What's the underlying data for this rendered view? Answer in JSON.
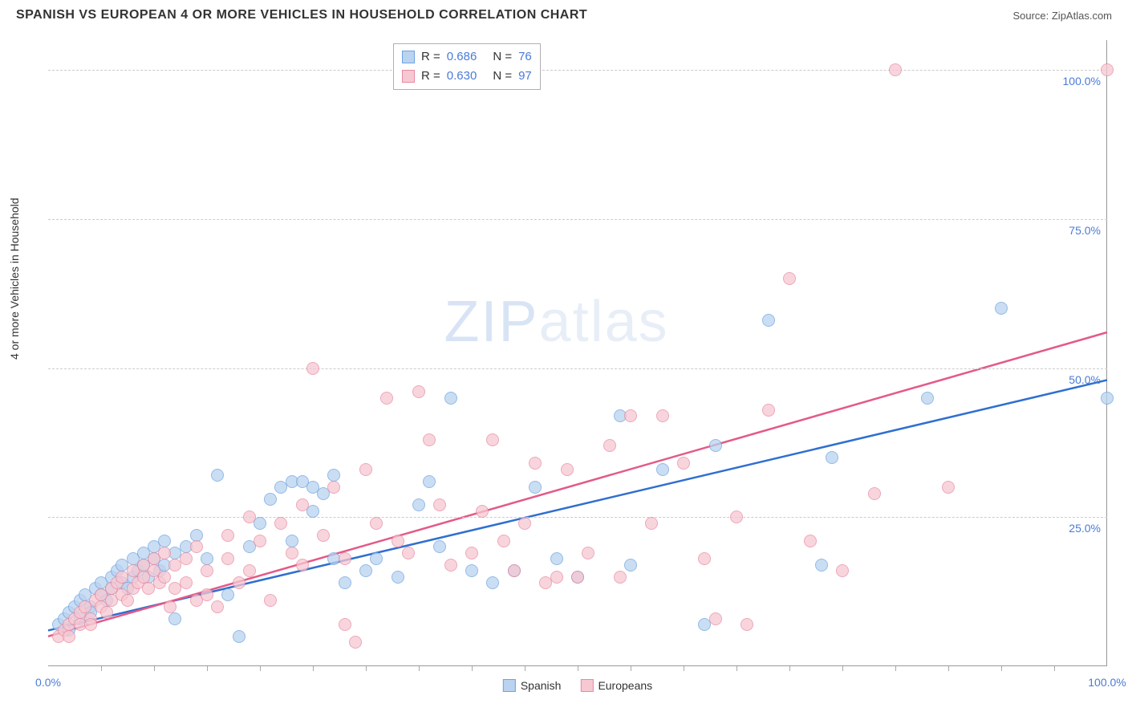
{
  "header": {
    "title": "SPANISH VS EUROPEAN 4 OR MORE VEHICLES IN HOUSEHOLD CORRELATION CHART",
    "source": "Source: ZipAtlas.com"
  },
  "axes": {
    "ylabel": "4 or more Vehicles in Household",
    "xmin": 0,
    "xmax": 100,
    "ymin": 0,
    "ymax": 105,
    "yticks": [
      {
        "v": 25,
        "label": "25.0%"
      },
      {
        "v": 50,
        "label": "50.0%"
      },
      {
        "v": 75,
        "label": "75.0%"
      },
      {
        "v": 100,
        "label": "100.0%"
      }
    ],
    "xtick_major": [
      {
        "v": 0,
        "label": "0.0%"
      },
      {
        "v": 100,
        "label": "100.0%"
      }
    ],
    "xtick_minor": [
      5,
      10,
      15,
      20,
      25,
      30,
      35,
      40,
      45,
      50,
      55,
      60,
      65,
      70,
      75,
      80,
      85,
      90,
      95
    ],
    "grid_color": "#cccccc",
    "label_color": "#4a7bd6"
  },
  "watermark": {
    "bold": "ZIP",
    "light": "atlas"
  },
  "series": [
    {
      "name": "Spanish",
      "fill": "#b9d3f0",
      "stroke": "#6fa3e0",
      "line_color": "#2f6fd0",
      "R": "0.686",
      "N": "76",
      "trend": {
        "x1": 0,
        "y1": 6,
        "x2": 100,
        "y2": 48
      },
      "points": [
        [
          1,
          7
        ],
        [
          1.5,
          8
        ],
        [
          2,
          9
        ],
        [
          2,
          6
        ],
        [
          2.5,
          10
        ],
        [
          3,
          8
        ],
        [
          3,
          11
        ],
        [
          3.5,
          12
        ],
        [
          4,
          10
        ],
        [
          4,
          9
        ],
        [
          4.5,
          13
        ],
        [
          5,
          12
        ],
        [
          5,
          14
        ],
        [
          5.5,
          11
        ],
        [
          6,
          15
        ],
        [
          6,
          13
        ],
        [
          6.5,
          16
        ],
        [
          7,
          14
        ],
        [
          7,
          17
        ],
        [
          7.5,
          13
        ],
        [
          8,
          18
        ],
        [
          8,
          15
        ],
        [
          8.5,
          16
        ],
        [
          9,
          19
        ],
        [
          9,
          17
        ],
        [
          9.5,
          15
        ],
        [
          10,
          20
        ],
        [
          10,
          18
        ],
        [
          10.5,
          16
        ],
        [
          11,
          21
        ],
        [
          11,
          17
        ],
        [
          12,
          19
        ],
        [
          12,
          8
        ],
        [
          13,
          20
        ],
        [
          14,
          22
        ],
        [
          15,
          18
        ],
        [
          16,
          32
        ],
        [
          17,
          12
        ],
        [
          18,
          5
        ],
        [
          19,
          20
        ],
        [
          20,
          24
        ],
        [
          21,
          28
        ],
        [
          22,
          30
        ],
        [
          23,
          21
        ],
        [
          23,
          31
        ],
        [
          24,
          31
        ],
        [
          25,
          30
        ],
        [
          25,
          26
        ],
        [
          26,
          29
        ],
        [
          27,
          32
        ],
        [
          27,
          18
        ],
        [
          28,
          14
        ],
        [
          30,
          16
        ],
        [
          31,
          18
        ],
        [
          33,
          15
        ],
        [
          35,
          27
        ],
        [
          36,
          31
        ],
        [
          37,
          20
        ],
        [
          38,
          45
        ],
        [
          40,
          16
        ],
        [
          42,
          14
        ],
        [
          44,
          16
        ],
        [
          46,
          30
        ],
        [
          48,
          18
        ],
        [
          50,
          15
        ],
        [
          54,
          42
        ],
        [
          55,
          17
        ],
        [
          58,
          33
        ],
        [
          62,
          7
        ],
        [
          63,
          37
        ],
        [
          68,
          58
        ],
        [
          73,
          17
        ],
        [
          74,
          35
        ],
        [
          83,
          45
        ],
        [
          90,
          60
        ],
        [
          100,
          45
        ]
      ]
    },
    {
      "name": "Europeans",
      "fill": "#f6c8d2",
      "stroke": "#e88aa2",
      "line_color": "#e35a87",
      "R": "0.630",
      "N": "97",
      "trend": {
        "x1": 0,
        "y1": 5,
        "x2": 100,
        "y2": 56
      },
      "points": [
        [
          1,
          5
        ],
        [
          1.5,
          6
        ],
        [
          2,
          7
        ],
        [
          2,
          5
        ],
        [
          2.5,
          8
        ],
        [
          3,
          7
        ],
        [
          3,
          9
        ],
        [
          3.5,
          10
        ],
        [
          4,
          8
        ],
        [
          4,
          7
        ],
        [
          4.5,
          11
        ],
        [
          5,
          10
        ],
        [
          5,
          12
        ],
        [
          5.5,
          9
        ],
        [
          6,
          13
        ],
        [
          6,
          11
        ],
        [
          6.5,
          14
        ],
        [
          7,
          12
        ],
        [
          7,
          15
        ],
        [
          7.5,
          11
        ],
        [
          8,
          16
        ],
        [
          8,
          13
        ],
        [
          8.5,
          14
        ],
        [
          9,
          17
        ],
        [
          9,
          15
        ],
        [
          9.5,
          13
        ],
        [
          10,
          18
        ],
        [
          10,
          16
        ],
        [
          10.5,
          14
        ],
        [
          11,
          19
        ],
        [
          11,
          15
        ],
        [
          11.5,
          10
        ],
        [
          12,
          17
        ],
        [
          12,
          13
        ],
        [
          13,
          18
        ],
        [
          13,
          14
        ],
        [
          14,
          11
        ],
        [
          14,
          20
        ],
        [
          15,
          16
        ],
        [
          15,
          12
        ],
        [
          16,
          10
        ],
        [
          17,
          22
        ],
        [
          17,
          18
        ],
        [
          18,
          14
        ],
        [
          19,
          25
        ],
        [
          19,
          16
        ],
        [
          20,
          21
        ],
        [
          21,
          11
        ],
        [
          22,
          24
        ],
        [
          23,
          19
        ],
        [
          24,
          27
        ],
        [
          24,
          17
        ],
        [
          25,
          50
        ],
        [
          26,
          22
        ],
        [
          27,
          30
        ],
        [
          28,
          7
        ],
        [
          28,
          18
        ],
        [
          29,
          4
        ],
        [
          30,
          33
        ],
        [
          31,
          24
        ],
        [
          32,
          45
        ],
        [
          33,
          21
        ],
        [
          34,
          19
        ],
        [
          35,
          46
        ],
        [
          36,
          38
        ],
        [
          37,
          27
        ],
        [
          38,
          17
        ],
        [
          40,
          19
        ],
        [
          41,
          26
        ],
        [
          42,
          38
        ],
        [
          43,
          21
        ],
        [
          44,
          16
        ],
        [
          45,
          24
        ],
        [
          46,
          34
        ],
        [
          47,
          14
        ],
        [
          48,
          15
        ],
        [
          49,
          33
        ],
        [
          50,
          15
        ],
        [
          51,
          19
        ],
        [
          53,
          37
        ],
        [
          54,
          15
        ],
        [
          55,
          42
        ],
        [
          57,
          24
        ],
        [
          58,
          42
        ],
        [
          60,
          34
        ],
        [
          62,
          18
        ],
        [
          63,
          8
        ],
        [
          65,
          25
        ],
        [
          66,
          7
        ],
        [
          68,
          43
        ],
        [
          70,
          65
        ],
        [
          72,
          21
        ],
        [
          75,
          16
        ],
        [
          78,
          29
        ],
        [
          80,
          100
        ],
        [
          85,
          30
        ],
        [
          100,
          100
        ]
      ]
    }
  ],
  "legend": {
    "s1": "Spanish",
    "s2": "Europeans"
  }
}
